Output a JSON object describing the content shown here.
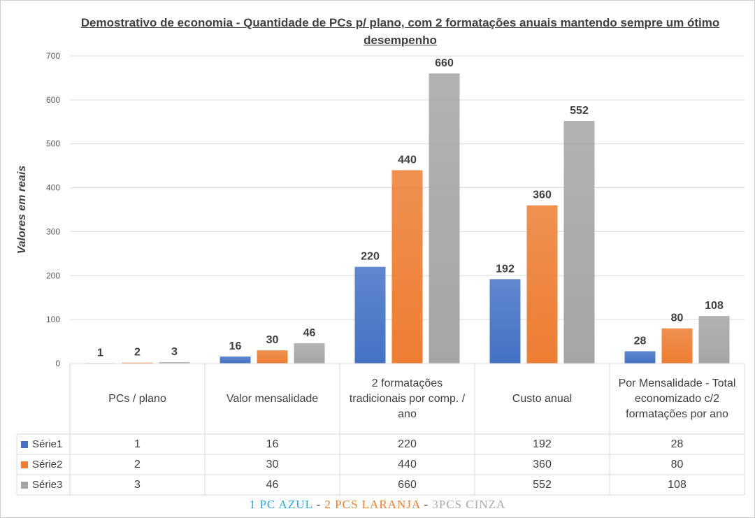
{
  "chart_data": {
    "type": "bar",
    "title": "Demostrativo  de economia - Quantidade  de PCs p/ plano, com 2 formatações  anuais mantendo sempre um ótimo desempenho",
    "ylabel": "Valores em reais",
    "xlabel": "",
    "ylim": [
      0,
      700
    ],
    "yticks": [
      0,
      100,
      200,
      300,
      400,
      500,
      600,
      700
    ],
    "grid": true,
    "categories": [
      "PCs / plano",
      "Valor mensalidade",
      "2 formatações tradicionais por comp. / ano",
      "Custo anual",
      "Por Mensalidade - Total economizado c/2 formatações por ano"
    ],
    "series": [
      {
        "name": "Série1",
        "color": "#4472c4",
        "values": [
          1,
          16,
          220,
          192,
          28
        ]
      },
      {
        "name": "Série2",
        "color": "#ed7d31",
        "values": [
          2,
          30,
          440,
          360,
          80
        ]
      },
      {
        "name": "Série3",
        "color": "#a5a5a5",
        "values": [
          3,
          46,
          660,
          552,
          108
        ]
      }
    ],
    "data_table": true
  },
  "caption": {
    "part1": "1 PC AZUL",
    "sep1": " - ",
    "part2": "2 PCS LARANJA",
    "sep2": " - ",
    "part3": "3PCS CINZA"
  }
}
